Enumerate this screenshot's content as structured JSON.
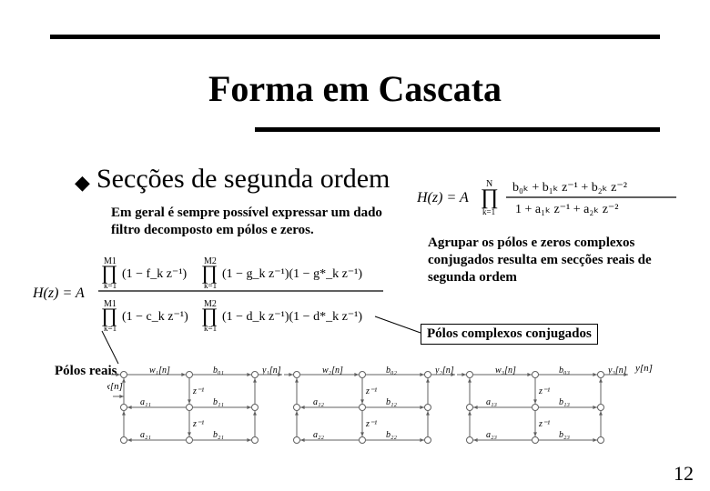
{
  "colors": {
    "rule": "#000000",
    "text": "#000000",
    "background": "#ffffff",
    "diagram_stroke": "#606060"
  },
  "title": "Forma em Cascata",
  "bullet_glyph": "◆",
  "subheading": "Secções de segunda ordem",
  "para_left": "Em geral é sempre possível expressar um dado filtro decomposto em pólos e zeros.",
  "para_right": "Agrupar os pólos e zeros complexos conjugados resulta em secções reais de segunda ordem",
  "callouts": {
    "complex_poles": "Pólos complexos conjugados",
    "real_poles": "Pólos reais"
  },
  "formula_left": {
    "lhs": "H(z) = A",
    "num_prod1": {
      "limit": "M1",
      "idx": "k=1",
      "term": "(1 − f_k z⁻¹)"
    },
    "num_prod2": {
      "limit": "M2",
      "idx": "k=1",
      "term": "(1 − g_k z⁻¹)(1 − g*_k z⁻¹)"
    },
    "den_prod1": {
      "limit": "M1",
      "idx": "k=1",
      "term": "(1 − c_k z⁻¹)"
    },
    "den_prod2": {
      "limit": "M2",
      "idx": "k=1",
      "term": "(1 − d_k z⁻¹)(1 − d*_k z⁻¹)"
    }
  },
  "formula_right": {
    "lhs": "H(z) = A",
    "prod": {
      "limit": "N",
      "idx": "k=1"
    },
    "num": "b₀ₖ + b₁ₖ z⁻¹ + b₂ₖ z⁻²",
    "den": "1 + a₁ₖ z⁻¹ + a₂ₖ z⁻²"
  },
  "diagram": {
    "input": "x[n]",
    "output": "y[n]",
    "sections": [
      {
        "w": "w₁[n]",
        "y": "y₁[n]",
        "b0": "b₀₁",
        "b1": "b₁₁",
        "b2": "b₂₁",
        "a1": "a₁₁",
        "a2": "a₂₁"
      },
      {
        "w": "w₂[n]",
        "y": "y₂[n]",
        "b0": "b₀₂",
        "b1": "b₁₂",
        "b2": "b₂₂",
        "a1": "a₁₂",
        "a2": "a₂₂"
      },
      {
        "w": "w₃[n]",
        "y": "y₃[n]",
        "b0": "b₀₃",
        "b1": "b₁₃",
        "b2": "b₂₃",
        "a1": "a₁₃",
        "a2": "a₂₃"
      }
    ],
    "delay_label": "z⁻¹"
  },
  "page_number": "12"
}
